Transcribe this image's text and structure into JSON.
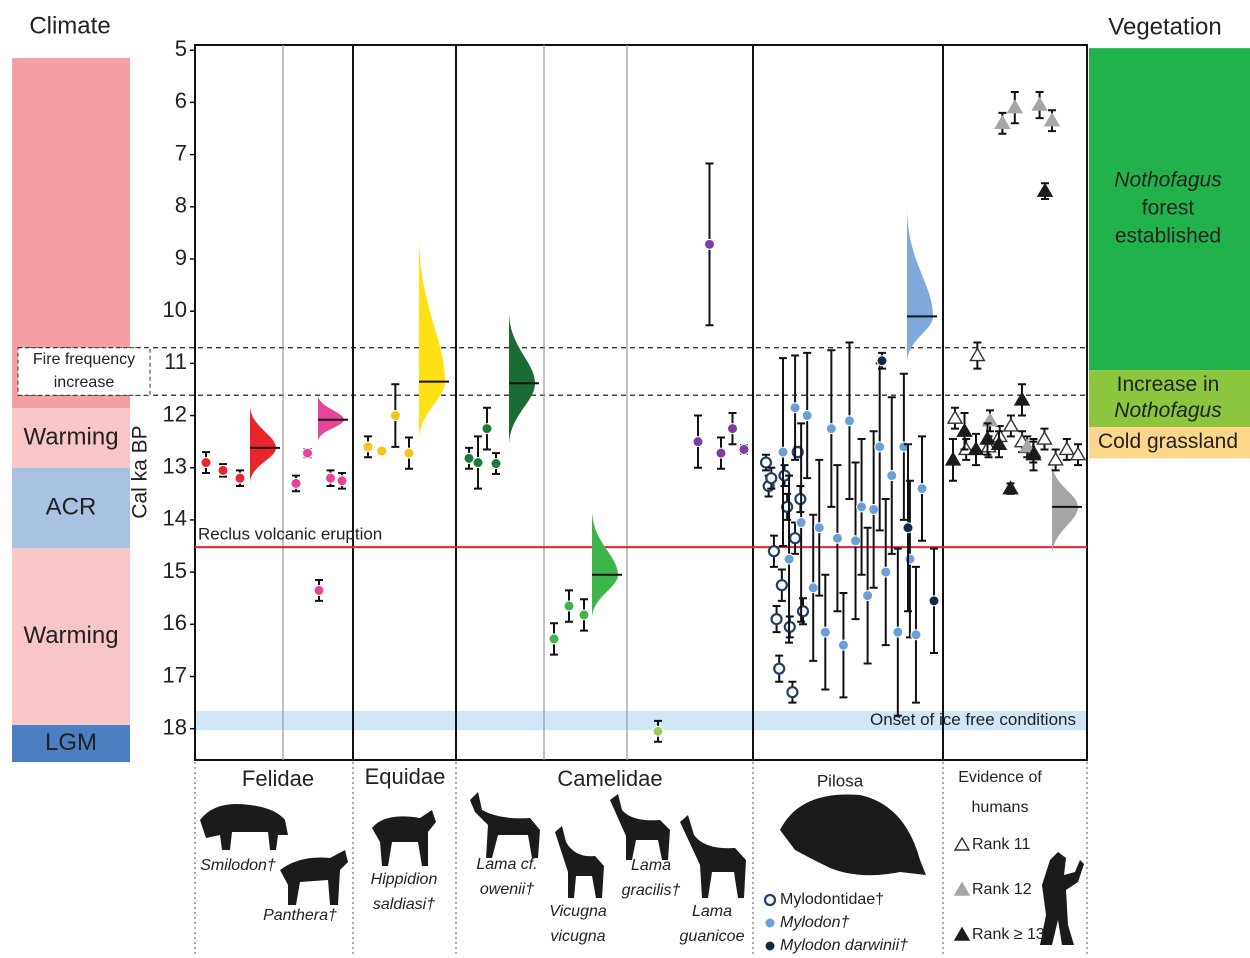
{
  "chart_data": {
    "type": "dot-range",
    "climate_title": "Climate",
    "vegetation_title": "Vegetation",
    "y_label": "Cal ka BP",
    "ylim": [
      4.9,
      18.6
    ],
    "yticks": [
      5,
      6,
      7,
      8,
      9,
      10,
      11,
      12,
      13,
      14,
      15,
      16,
      17,
      18
    ],
    "climate": [
      {
        "from": 5.15,
        "to": 11.86,
        "color": "#f4a0a3"
      },
      {
        "label": "Warming",
        "from": 11.86,
        "to": 13.0,
        "color": "#f8c6c8"
      },
      {
        "label": "ACR",
        "from": 13.0,
        "to": 14.54,
        "color": "#a9c2e2"
      },
      {
        "label": "Warming",
        "from": 14.54,
        "to": 17.93,
        "color": "#f8c6c8"
      },
      {
        "label": "LGM",
        "from": 17.93,
        "to": 18.64,
        "color": "#4b7fc2"
      }
    ],
    "vegetation": [
      {
        "lines": [
          {
            "text": "Nothofagus",
            "italic": true
          },
          {
            "text": "forest"
          },
          {
            "text": "established"
          }
        ],
        "from": 4.96,
        "to": 11.13,
        "color": "#22b24c"
      },
      {
        "lines": [
          {
            "text": "Increase in"
          },
          {
            "text": "Nothofagus",
            "italic": true
          }
        ],
        "from": 11.13,
        "to": 12.22,
        "color": "#8cc63f"
      },
      {
        "lines": [
          {
            "text": "Cold grassland"
          }
        ],
        "from": 12.22,
        "to": 12.82,
        "color": "#fcd68a"
      }
    ],
    "fire": {
      "lines": [
        "Fire frequency",
        "increase"
      ],
      "from": 10.7,
      "to": 11.61
    },
    "eruption": {
      "label": "Reclus volcanic eruption",
      "value": 14.52,
      "color": "#e0262b"
    },
    "ice_free": {
      "label": "Onset of ice free conditions",
      "from": 17.66,
      "to": 18.03,
      "color": "#cfe6f7"
    },
    "panels": [
      {
        "label": [
          "Felidae"
        ],
        "taxa": [
          [
            "Smilodon†"
          ],
          [
            "Panthera†"
          ]
        ],
        "series": [
          {
            "color": "#e8262b",
            "marker": "circle",
            "values": [
              12.9,
              13.05,
              13.2
            ],
            "errors": [
              0.2,
              0.12,
              0.15
            ]
          },
          {
            "color": "#e8449a",
            "marker": "circle",
            "values": [
              13.3,
              12.72,
              15.35,
              13.2,
              13.25
            ],
            "errors": [
              0.15,
              0.08,
              0.2,
              0.15,
              0.15
            ]
          }
        ],
        "densities": [
          {
            "color": "#e8262b",
            "median": 12.62,
            "range": [
              11.8,
              13.3
            ]
          },
          {
            "color": "#e8449a",
            "median": 12.08,
            "range": [
              11.6,
              12.5
            ]
          }
        ]
      },
      {
        "label": [
          "Equidae"
        ],
        "taxa": [
          [
            "Hippidion",
            "saldiasi†"
          ]
        ],
        "series": [
          {
            "color": "#f5c518",
            "marker": "circle",
            "values": [
              12.6,
              12.68,
              12.0,
              12.72
            ],
            "errors": [
              0.2,
              0.06,
              0.6,
              0.3
            ]
          }
        ],
        "densities": [
          {
            "color": "#ffe014",
            "median": 11.35,
            "range": [
              8.5,
              12.5
            ]
          }
        ]
      },
      {
        "label": [
          "Camelidae"
        ],
        "taxa": [
          [
            "Lama cf.",
            "owenii†"
          ],
          [
            "Vicugna",
            "vicugna"
          ],
          [
            "Lama",
            "gracilis†"
          ],
          [
            "Lama",
            "guanicoe"
          ]
        ],
        "series": [
          {
            "color": "#1f7a3a",
            "marker": "circle",
            "values": [
              12.82,
              12.9,
              12.25,
              12.92
            ],
            "errors": [
              0.2,
              0.5,
              0.4,
              0.2
            ]
          },
          {
            "color": "#3cb54a",
            "marker": "circle",
            "values": [
              16.28,
              15.65,
              15.82
            ],
            "errors": [
              0.3,
              0.3,
              0.3
            ]
          },
          {
            "color": "#9ccc5a",
            "marker": "circle",
            "values": [
              18.05
            ],
            "errors": [
              0.2
            ]
          },
          {
            "color": "#7a3f9e",
            "marker": "circle",
            "values": [
              12.5,
              8.72,
              12.72,
              12.25,
              12.65
            ],
            "errors": [
              0.5,
              1.55,
              0.3,
              0.3,
              0.08
            ]
          }
        ],
        "densities": [
          {
            "color": "#1a6b34",
            "median": 11.38,
            "range": [
              10.0,
              12.6
            ]
          },
          {
            "color": "#3cb54a",
            "median": 15.05,
            "range": [
              13.8,
              15.9
            ]
          }
        ]
      },
      {
        "label": [
          "Pilosa"
        ],
        "series": [
          {
            "name": "Mylodontidae†",
            "color": "#1f3f6e",
            "marker": "open-circle",
            "values": [
              12.9,
              13.35,
              13.2,
              14.6,
              15.9,
              16.85,
              15.25,
              13.15,
              13.75,
              16.05,
              17.3,
              14.35,
              12.7,
              13.6,
              15.75
            ],
            "errors": [
              0.15,
              0.2,
              0.2,
              0.3,
              0.25,
              0.25,
              0.3,
              0.2,
              0.25,
              0.2,
              0.2,
              0.3,
              0.1,
              0.25,
              0.25
            ]
          },
          {
            "name": "Mylodon†",
            "italic": true,
            "color": "#6a9fd8",
            "marker": "circle",
            "values": [
              12.7,
              14.75,
              11.85,
              14.05,
              12.0,
              15.3,
              14.15,
              16.15,
              12.25,
              14.35,
              16.4,
              12.1,
              14.4,
              13.75,
              15.45,
              13.8,
              12.6,
              15.0,
              13.15,
              16.15,
              12.6,
              14.75,
              16.2,
              13.4
            ],
            "errors": [
              1.8,
              1.6,
              1.0,
              1.9,
              1.2,
              1.4,
              1.3,
              1.1,
              1.5,
              1.4,
              1.0,
              1.5,
              1.5,
              1.3,
              1.3,
              1.5,
              1.6,
              1.4,
              1.5,
              1.6,
              1.4,
              1.5,
              1.3,
              1.0
            ]
          },
          {
            "name": "Mylodon darwinii†",
            "italic": true,
            "color": "#13294b",
            "marker": "circle",
            "values": [
              10.95,
              14.15,
              15.55
            ],
            "errors": [
              0.15,
              1.6,
              1.0
            ]
          }
        ],
        "densities": [
          {
            "color": "#7fa9da",
            "median": 10.1,
            "range": [
              8.0,
              11.0
            ]
          }
        ]
      },
      {
        "label": [
          "Evidence of",
          "humans"
        ],
        "series": [
          {
            "name": "Rank 11",
            "color": "#333333",
            "marker": "open-triangle",
            "values": [
              12.05,
              12.65,
              10.85,
              12.6,
              12.4,
              12.2,
              12.5,
              12.7,
              12.45,
              12.85,
              12.65,
              12.75
            ],
            "errors": [
              0.2,
              0.2,
              0.25,
              0.2,
              0.2,
              0.2,
              0.2,
              0.2,
              0.2,
              0.2,
              0.2,
              0.2
            ]
          },
          {
            "name": "Rank 12",
            "color": "#a6a6a6",
            "marker": "triangle",
            "values": [
              12.1,
              6.4,
              6.1,
              12.6,
              6.05,
              6.35
            ],
            "errors": [
              0.2,
              0.2,
              0.3,
              0.2,
              0.25,
              0.2
            ]
          },
          {
            "name": "Rank ≥ 13",
            "color": "#1b1b1b",
            "marker": "triangle",
            "values": [
              12.85,
              12.3,
              12.65,
              12.45,
              12.55,
              13.4,
              11.7,
              12.75,
              7.7
            ],
            "errors": [
              0.4,
              0.35,
              0.3,
              0.3,
              0.25,
              0.1,
              0.3,
              0.3,
              0.15
            ]
          }
        ],
        "densities": [
          {
            "color": "#a6a6a6",
            "median": 13.75,
            "range": [
              12.9,
              14.7
            ]
          }
        ]
      }
    ]
  }
}
